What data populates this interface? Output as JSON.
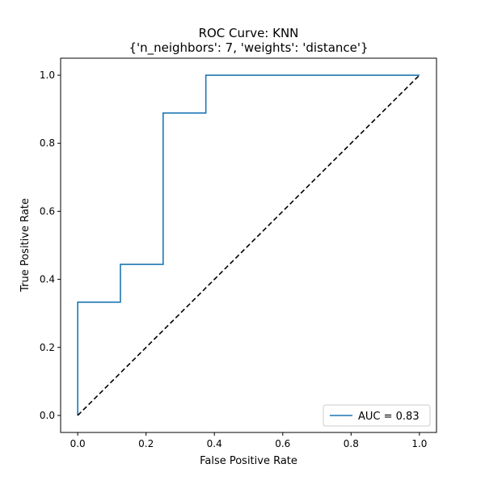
{
  "chart_data": {
    "type": "line",
    "title": "ROC Curve: KNN",
    "subtitle": "{'n_neighbors': 7, 'weights': 'distance'}",
    "xlabel": "False Positive Rate",
    "ylabel": "True Positive Rate",
    "xlim": [
      -0.05,
      1.05
    ],
    "ylim": [
      -0.05,
      1.05
    ],
    "xticks": [
      "0.0",
      "0.2",
      "0.4",
      "0.6",
      "0.8",
      "1.0"
    ],
    "yticks": [
      "0.0",
      "0.2",
      "0.4",
      "0.6",
      "0.8",
      "1.0"
    ],
    "grid": false,
    "legend_position": "lower right",
    "series": [
      {
        "name": "AUC = 0.83",
        "color": "#1f77b4",
        "style": "solid",
        "x": [
          0.0,
          0.0,
          0.125,
          0.125,
          0.25,
          0.25,
          0.375,
          0.375,
          1.0
        ],
        "y": [
          0.0,
          0.333,
          0.333,
          0.444,
          0.444,
          0.889,
          0.889,
          1.0,
          1.0
        ]
      },
      {
        "color": "#000000",
        "style": "dashed",
        "x": [
          0.0,
          1.0
        ],
        "y": [
          0.0,
          1.0
        ]
      }
    ]
  }
}
